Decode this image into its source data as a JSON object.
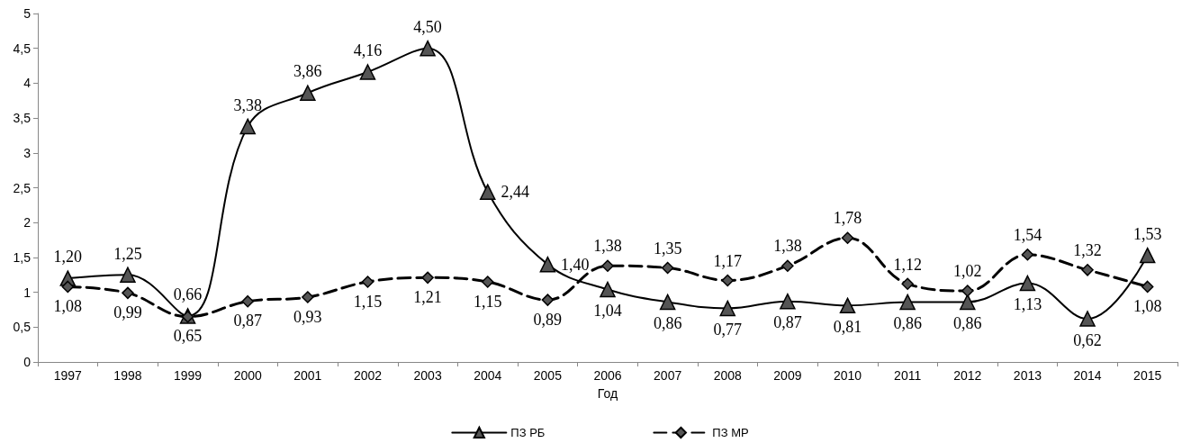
{
  "chart_data": {
    "type": "line",
    "xlabel": "Год",
    "categories": [
      "1997",
      "1998",
      "1999",
      "2000",
      "2001",
      "2002",
      "2003",
      "2004",
      "2005",
      "2006",
      "2007",
      "2008",
      "2009",
      "2010",
      "2011",
      "2012",
      "2013",
      "2014",
      "2015"
    ],
    "series": [
      {
        "name": "ПЗ РБ",
        "color": "#000000",
        "line_style": "solid",
        "marker": "triangle",
        "values": [
          1.2,
          1.25,
          0.66,
          3.38,
          3.86,
          4.16,
          4.5,
          2.44,
          1.4,
          1.04,
          0.86,
          0.77,
          0.87,
          0.81,
          0.86,
          0.86,
          1.13,
          0.62,
          1.53
        ],
        "value_labels": [
          "1,20",
          "1,25",
          "0,66",
          "3,38",
          "3,86",
          "4,16",
          "4,50",
          "2,44",
          "1,40",
          "1,04",
          "0,86",
          "0,77",
          "0,87",
          "0,81",
          "0,86",
          "0,86",
          "1,13",
          "0,62",
          "1,53"
        ]
      },
      {
        "name": "ПЗ МР",
        "color": "#000000",
        "line_style": "dashed",
        "marker": "diamond",
        "values": [
          1.08,
          0.99,
          0.65,
          0.87,
          0.93,
          1.15,
          1.21,
          1.15,
          0.89,
          1.38,
          1.35,
          1.17,
          1.38,
          1.78,
          1.12,
          1.02,
          1.54,
          1.32,
          1.08
        ],
        "value_labels": [
          "1,08",
          "0,99",
          "0,65",
          "0,87",
          "0,93",
          "1,15",
          "1,21",
          "1,15",
          "0,89",
          "1,38",
          "1,35",
          "1,17",
          "1,38",
          "1,78",
          "1,12",
          "1,02",
          "1,54",
          "1,32",
          "1,08"
        ]
      }
    ],
    "ylim": [
      0,
      5
    ],
    "yticks": [
      0,
      {
        "value": 0.5,
        "label": "0,5"
      },
      1,
      {
        "value": 1.5,
        "label": "1,5"
      },
      2,
      {
        "value": 2.5,
        "label": "2,5"
      },
      3,
      {
        "value": 3.5,
        "label": "3,5"
      },
      4,
      {
        "value": 4.5,
        "label": "4,5"
      },
      5
    ],
    "grid": false,
    "legend": "bottom"
  }
}
